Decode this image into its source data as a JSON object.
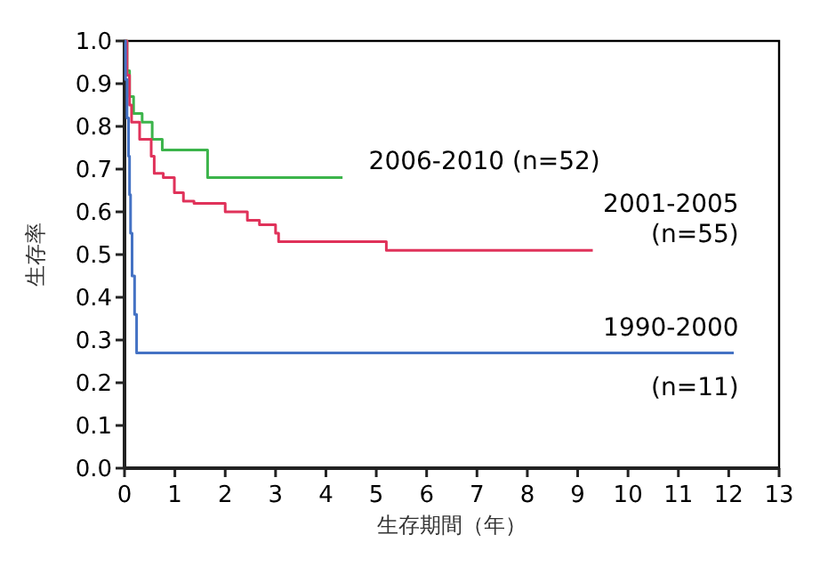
{
  "chart_data": {
    "type": "step",
    "xlabel": "生存期間（年）",
    "ylabel": "生存率",
    "xlim": [
      0,
      13
    ],
    "xticks": [
      0,
      1,
      2,
      3,
      4,
      5,
      6,
      7,
      8,
      9,
      10,
      11,
      12,
      13
    ],
    "ylim": [
      0,
      1
    ],
    "yticks": [
      {
        "value": 0,
        "label": "0.0"
      },
      0.1,
      0.2,
      0.3,
      0.4,
      0.5,
      0.6,
      0.7,
      0.8,
      0.9,
      {
        "value": 1,
        "label": "1.0"
      }
    ],
    "grid": false,
    "legend": false,
    "marker": "none",
    "line_style": "solid",
    "series": [
      {
        "name": "2006-2010  (n=52)",
        "color": "#3cb44b",
        "x": [
          0,
          0.05,
          0.1,
          0.18,
          0.35,
          0.55,
          0.75,
          1.52,
          1.65,
          4.33
        ],
        "values": [
          1,
          0.93,
          0.87,
          0.83,
          0.81,
          0.77,
          0.745,
          0.745,
          0.68,
          0.68
        ]
      },
      {
        "name": "2001-2005\n(n=55)",
        "color": "#e0325a",
        "x": [
          0,
          0.05,
          0.1,
          0.14,
          0.3,
          0.53,
          0.59,
          0.77,
          0.99,
          1.17,
          1.38,
          2.0,
          2.44,
          2.68,
          3.0,
          3.06,
          5.2,
          9.3
        ],
        "values": [
          1,
          0.92,
          0.85,
          0.81,
          0.77,
          0.73,
          0.69,
          0.68,
          0.645,
          0.625,
          0.62,
          0.6,
          0.58,
          0.57,
          0.55,
          0.53,
          0.51,
          0.51
        ]
      },
      {
        "name": "1990-2000\n\n(n=11)",
        "color": "#4472c4",
        "x": [
          0,
          0.02,
          0.05,
          0.08,
          0.1,
          0.12,
          0.15,
          0.2,
          0.24,
          12.1
        ],
        "values": [
          1,
          0.91,
          0.82,
          0.73,
          0.64,
          0.55,
          0.45,
          0.36,
          0.27,
          0.27
        ]
      }
    ]
  }
}
